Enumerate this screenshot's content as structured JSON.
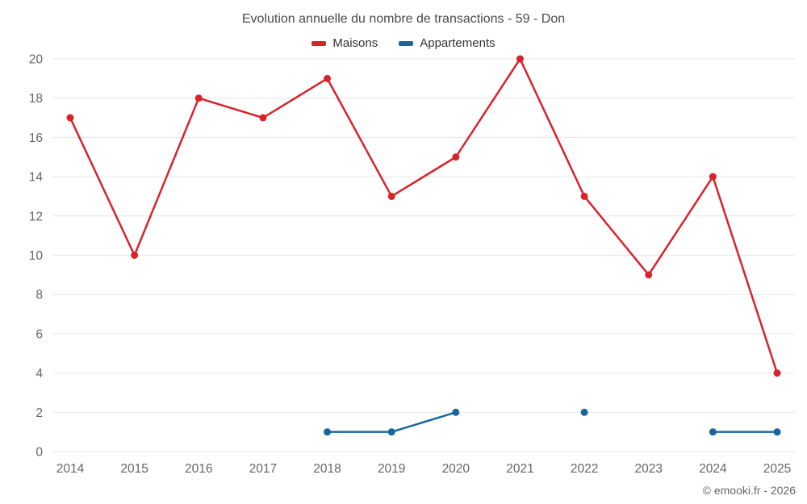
{
  "header": {
    "title": "Evolution annuelle du nombre de transactions - 59 - Don"
  },
  "legend": {
    "items": [
      {
        "label": "Maisons",
        "color": "#d8232a"
      },
      {
        "label": "Appartements",
        "color": "#17679e"
      }
    ]
  },
  "footer": {
    "credit": "© emooki.fr - 2026"
  },
  "chart_data": {
    "type": "line",
    "title": "Evolution annuelle du nombre de transactions - 59 - Don",
    "categories": [
      "2014",
      "2015",
      "2016",
      "2017",
      "2018",
      "2019",
      "2020",
      "2021",
      "2022",
      "2023",
      "2024",
      "2025"
    ],
    "series": [
      {
        "name": "Maisons",
        "color": "#d8232a",
        "values": [
          17,
          10,
          18,
          17,
          19,
          13,
          15,
          20,
          13,
          9,
          14,
          4
        ]
      },
      {
        "name": "Appartements",
        "color": "#17679e",
        "values": [
          null,
          null,
          null,
          null,
          1,
          1,
          2,
          null,
          2,
          null,
          1,
          1
        ]
      }
    ],
    "xlabel": "",
    "ylabel": "",
    "ylim": [
      0,
      20
    ],
    "ytick_step": 2,
    "grid": "horizontal",
    "legend_position": "top"
  }
}
